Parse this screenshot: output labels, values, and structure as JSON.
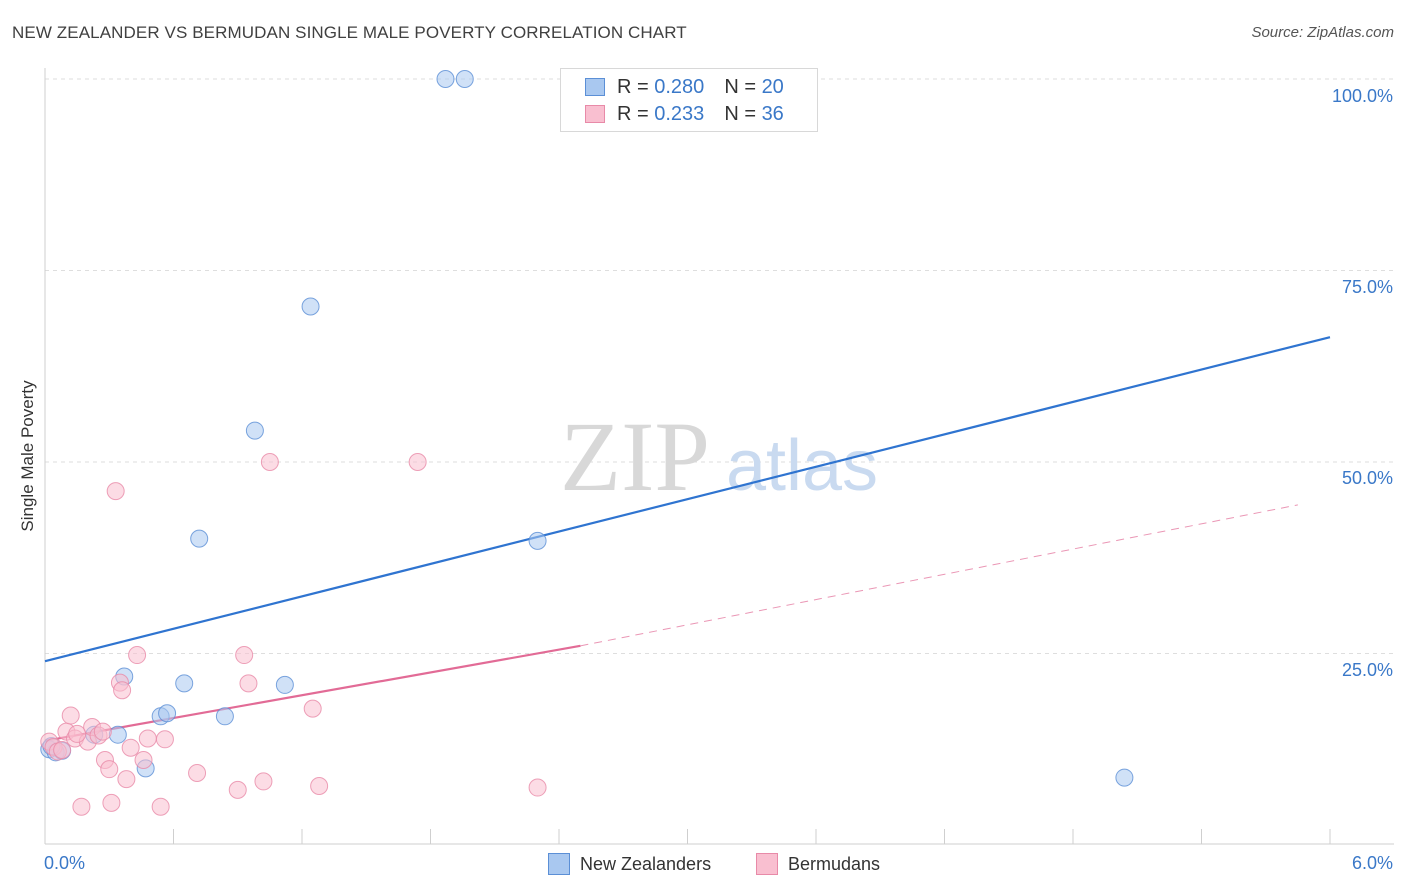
{
  "header": {
    "title": "NEW ZEALANDER VS BERMUDAN SINGLE MALE POVERTY CORRELATION CHART",
    "source": "Source: ZipAtlas.com"
  },
  "watermark": {
    "zip": "ZIP",
    "atlas": "atlas"
  },
  "legend": {
    "rows": [
      {
        "r_label": "R =",
        "r_value": "0.280",
        "n_label": "N =",
        "n_value": "20",
        "color": "#a9c8f0",
        "border": "#5b8fd6"
      },
      {
        "r_label": "R =",
        "r_value": "0.233",
        "n_label": "N =",
        "n_value": "36",
        "color": "#f9bfd0",
        "border": "#e88aa8"
      }
    ]
  },
  "chart_data": {
    "type": "scatter",
    "title": "NEW ZEALANDER VS BERMUDAN SINGLE MALE POVERTY CORRELATION CHART",
    "xlabel": "",
    "ylabel": "Single Male Poverty",
    "xlim": [
      0,
      6
    ],
    "ylim": [
      0,
      100
    ],
    "x_tick_labels": [
      "0.0%",
      "6.0%"
    ],
    "y_tick_labels": [
      "100.0%",
      "75.0%",
      "50.0%",
      "25.0%"
    ],
    "y_tick_values": [
      100,
      75,
      50,
      25
    ],
    "legend_position": "top-center",
    "series": [
      {
        "name": "New Zealanders",
        "color": "#a9c8f0",
        "stroke": "#5b8fd6",
        "trend_color": "#2f74d0",
        "trend": {
          "x0": 0,
          "y0": 24,
          "x1": 6,
          "y1": 66.3
        },
        "points": [
          [
            0.02,
            12.5
          ],
          [
            0.05,
            12.1
          ],
          [
            0.08,
            12.3
          ],
          [
            0.23,
            14.4
          ],
          [
            0.34,
            14.4
          ],
          [
            0.37,
            22.0
          ],
          [
            0.47,
            10.0
          ],
          [
            0.54,
            16.8
          ],
          [
            0.57,
            17.2
          ],
          [
            0.65,
            21.1
          ],
          [
            0.72,
            40.0
          ],
          [
            0.84,
            16.8
          ],
          [
            0.98,
            54.1
          ],
          [
            1.12,
            20.9
          ],
          [
            1.24,
            70.3
          ],
          [
            1.87,
            100.0
          ],
          [
            1.96,
            100.0
          ],
          [
            2.3,
            39.7
          ],
          [
            5.04,
            8.8
          ],
          [
            0.03,
            12.9
          ]
        ]
      },
      {
        "name": "Bermudans",
        "color": "#f9bfd0",
        "stroke": "#e88aa8",
        "trend_color": "#e26b96",
        "trend": {
          "x0": 0,
          "y0": 13.6,
          "x1": 2.5,
          "y1": 26.0
        },
        "trend_extension": {
          "x0": 2.5,
          "y0": 26.0,
          "x1": 5.85,
          "y1": 44.4
        },
        "points": [
          [
            0.02,
            13.5
          ],
          [
            0.04,
            12.8
          ],
          [
            0.06,
            12.2
          ],
          [
            0.1,
            14.8
          ],
          [
            0.12,
            16.9
          ],
          [
            0.14,
            13.9
          ],
          [
            0.17,
            5.0
          ],
          [
            0.2,
            13.5
          ],
          [
            0.22,
            15.4
          ],
          [
            0.25,
            14.3
          ],
          [
            0.27,
            14.8
          ],
          [
            0.28,
            11.1
          ],
          [
            0.3,
            9.9
          ],
          [
            0.31,
            5.5
          ],
          [
            0.33,
            46.2
          ],
          [
            0.35,
            21.2
          ],
          [
            0.36,
            20.2
          ],
          [
            0.38,
            8.6
          ],
          [
            0.4,
            12.7
          ],
          [
            0.43,
            24.8
          ],
          [
            0.46,
            11.1
          ],
          [
            0.48,
            13.9
          ],
          [
            0.54,
            5.0
          ],
          [
            0.56,
            13.8
          ],
          [
            0.71,
            9.4
          ],
          [
            0.9,
            7.2
          ],
          [
            0.93,
            24.8
          ],
          [
            0.95,
            21.1
          ],
          [
            1.02,
            8.3
          ],
          [
            1.05,
            50.0
          ],
          [
            1.25,
            17.8
          ],
          [
            1.28,
            7.7
          ],
          [
            1.74,
            50.0
          ],
          [
            2.3,
            7.5
          ],
          [
            0.08,
            12.4
          ],
          [
            0.15,
            14.5
          ]
        ]
      }
    ]
  }
}
